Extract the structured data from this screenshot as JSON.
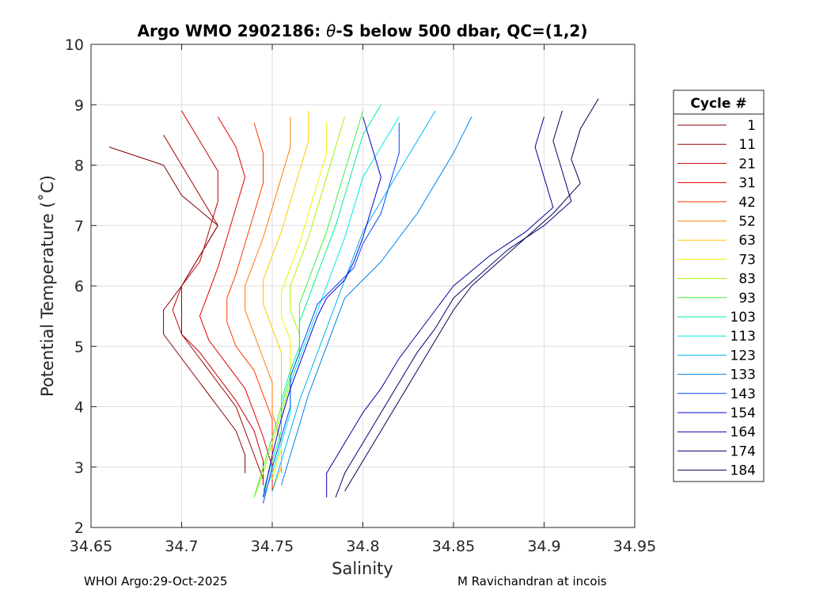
{
  "chart_data": {
    "type": "line",
    "title_prefix": "Argo WMO 2902186: ",
    "title_symbol": "θ",
    "title_suffix": "-S below 500 dbar,  QC=(1,2)",
    "xlabel": "Salinity",
    "ylabel": "Potential Temperature (˚C)",
    "xlim": [
      34.65,
      34.95
    ],
    "ylim": [
      2,
      10
    ],
    "x_ticks": [
      34.65,
      34.7,
      34.75,
      34.8,
      34.85,
      34.9,
      34.95
    ],
    "x_tick_labels": [
      "34.65",
      "34.7",
      "34.75",
      "34.8",
      "34.85",
      "34.9",
      "34.95"
    ],
    "y_ticks": [
      2,
      3,
      4,
      5,
      6,
      7,
      8,
      9,
      10
    ],
    "y_tick_labels": [
      "2",
      "3",
      "4",
      "5",
      "6",
      "7",
      "8",
      "9",
      "10"
    ],
    "grid": true,
    "legend_title": "Cycle #",
    "legend_placement": "outside-right",
    "series": [
      {
        "name": "1",
        "color": "#800000",
        "points": [
          [
            34.66,
            8.3
          ],
          [
            34.69,
            8.0
          ],
          [
            34.7,
            7.5
          ],
          [
            34.72,
            7.0
          ],
          [
            34.71,
            6.5
          ],
          [
            34.7,
            6.0
          ],
          [
            34.69,
            5.6
          ],
          [
            34.69,
            5.2
          ],
          [
            34.7,
            4.8
          ],
          [
            34.71,
            4.4
          ],
          [
            34.72,
            4.0
          ],
          [
            34.73,
            3.6
          ],
          [
            34.735,
            3.2
          ],
          [
            34.735,
            2.9
          ]
        ]
      },
      {
        "name": "11",
        "color": "#9a0000",
        "points": [
          [
            34.69,
            8.5
          ],
          [
            34.7,
            8.0
          ],
          [
            34.71,
            7.5
          ],
          [
            34.72,
            7.0
          ],
          [
            34.71,
            6.5
          ],
          [
            34.7,
            6.0
          ],
          [
            34.7,
            5.5
          ],
          [
            34.7,
            5.2
          ],
          [
            34.71,
            4.8
          ],
          [
            34.72,
            4.4
          ],
          [
            34.73,
            4.0
          ],
          [
            34.735,
            3.6
          ],
          [
            34.74,
            3.2
          ],
          [
            34.745,
            2.8
          ]
        ]
      },
      {
        "name": "21",
        "color": "#c40000",
        "points": [
          [
            34.7,
            8.9
          ],
          [
            34.71,
            8.4
          ],
          [
            34.72,
            7.9
          ],
          [
            34.72,
            7.4
          ],
          [
            34.715,
            6.9
          ],
          [
            34.71,
            6.4
          ],
          [
            34.7,
            6.0
          ],
          [
            34.695,
            5.6
          ],
          [
            34.7,
            5.2
          ],
          [
            34.71,
            4.9
          ],
          [
            34.72,
            4.5
          ],
          [
            34.73,
            4.1
          ],
          [
            34.74,
            3.6
          ],
          [
            34.745,
            3.1
          ],
          [
            34.745,
            2.7
          ]
        ]
      },
      {
        "name": "31",
        "color": "#e60000",
        "points": [
          [
            34.72,
            8.8
          ],
          [
            34.73,
            8.3
          ],
          [
            34.735,
            7.8
          ],
          [
            34.73,
            7.3
          ],
          [
            34.725,
            6.8
          ],
          [
            34.72,
            6.3
          ],
          [
            34.715,
            5.9
          ],
          [
            34.71,
            5.5
          ],
          [
            34.715,
            5.1
          ],
          [
            34.725,
            4.7
          ],
          [
            34.735,
            4.3
          ],
          [
            34.74,
            3.9
          ],
          [
            34.745,
            3.5
          ],
          [
            34.75,
            3.0
          ],
          [
            34.75,
            2.6
          ]
        ]
      },
      {
        "name": "42",
        "color": "#ff3a00",
        "points": [
          [
            34.74,
            8.7
          ],
          [
            34.745,
            8.2
          ],
          [
            34.745,
            7.7
          ],
          [
            34.74,
            7.2
          ],
          [
            34.735,
            6.7
          ],
          [
            34.73,
            6.2
          ],
          [
            34.725,
            5.8
          ],
          [
            34.725,
            5.4
          ],
          [
            34.73,
            5.0
          ],
          [
            34.74,
            4.6
          ],
          [
            34.745,
            4.2
          ],
          [
            34.75,
            3.8
          ],
          [
            34.75,
            3.3
          ],
          [
            34.75,
            2.8
          ]
        ]
      },
      {
        "name": "52",
        "color": "#ff7a00",
        "points": [
          [
            34.76,
            8.8
          ],
          [
            34.76,
            8.3
          ],
          [
            34.755,
            7.8
          ],
          [
            34.75,
            7.3
          ],
          [
            34.745,
            6.8
          ],
          [
            34.74,
            6.4
          ],
          [
            34.735,
            6.0
          ],
          [
            34.735,
            5.6
          ],
          [
            34.74,
            5.2
          ],
          [
            34.745,
            4.8
          ],
          [
            34.75,
            4.4
          ],
          [
            34.75,
            3.9
          ],
          [
            34.755,
            3.4
          ],
          [
            34.755,
            2.9
          ]
        ]
      },
      {
        "name": "63",
        "color": "#ffc800",
        "points": [
          [
            34.77,
            8.9
          ],
          [
            34.77,
            8.4
          ],
          [
            34.765,
            7.9
          ],
          [
            34.76,
            7.4
          ],
          [
            34.755,
            6.9
          ],
          [
            34.75,
            6.5
          ],
          [
            34.745,
            6.1
          ],
          [
            34.745,
            5.7
          ],
          [
            34.75,
            5.3
          ],
          [
            34.755,
            4.9
          ],
          [
            34.755,
            4.5
          ],
          [
            34.755,
            4.0
          ],
          [
            34.755,
            3.5
          ],
          [
            34.755,
            3.0
          ],
          [
            34.75,
            2.6
          ]
        ]
      },
      {
        "name": "73",
        "color": "#f2f200",
        "points": [
          [
            34.78,
            8.7
          ],
          [
            34.78,
            8.2
          ],
          [
            34.775,
            7.7
          ],
          [
            34.77,
            7.2
          ],
          [
            34.765,
            6.7
          ],
          [
            34.76,
            6.3
          ],
          [
            34.755,
            5.9
          ],
          [
            34.755,
            5.5
          ],
          [
            34.76,
            5.1
          ],
          [
            34.76,
            4.7
          ],
          [
            34.76,
            4.3
          ],
          [
            34.755,
            3.8
          ],
          [
            34.755,
            3.3
          ],
          [
            34.75,
            2.8
          ]
        ]
      },
      {
        "name": "83",
        "color": "#a8f000",
        "points": [
          [
            34.79,
            8.8
          ],
          [
            34.785,
            8.3
          ],
          [
            34.78,
            7.8
          ],
          [
            34.775,
            7.3
          ],
          [
            34.77,
            6.8
          ],
          [
            34.765,
            6.4
          ],
          [
            34.76,
            6.0
          ],
          [
            34.76,
            5.6
          ],
          [
            34.765,
            5.2
          ],
          [
            34.765,
            4.8
          ],
          [
            34.76,
            4.4
          ],
          [
            34.755,
            3.9
          ],
          [
            34.75,
            3.4
          ],
          [
            34.745,
            2.9
          ],
          [
            34.74,
            2.5
          ]
        ]
      },
      {
        "name": "93",
        "color": "#3cf03c",
        "points": [
          [
            34.8,
            8.9
          ],
          [
            34.795,
            8.4
          ],
          [
            34.79,
            7.9
          ],
          [
            34.785,
            7.4
          ],
          [
            34.78,
            6.9
          ],
          [
            34.775,
            6.5
          ],
          [
            34.77,
            6.1
          ],
          [
            34.765,
            5.7
          ],
          [
            34.765,
            5.3
          ],
          [
            34.765,
            4.9
          ],
          [
            34.76,
            4.5
          ],
          [
            34.755,
            4.0
          ],
          [
            34.75,
            3.5
          ],
          [
            34.745,
            3.0
          ],
          [
            34.74,
            2.5
          ]
        ]
      },
      {
        "name": "103",
        "color": "#00f090",
        "points": [
          [
            34.81,
            9.0
          ],
          [
            34.8,
            8.5
          ],
          [
            34.795,
            8.0
          ],
          [
            34.79,
            7.5
          ],
          [
            34.785,
            7.0
          ],
          [
            34.78,
            6.6
          ],
          [
            34.775,
            6.2
          ],
          [
            34.77,
            5.8
          ],
          [
            34.765,
            5.4
          ],
          [
            34.765,
            5.0
          ],
          [
            34.76,
            4.6
          ],
          [
            34.755,
            4.1
          ],
          [
            34.755,
            3.6
          ],
          [
            34.75,
            3.1
          ],
          [
            34.745,
            2.6
          ]
        ]
      },
      {
        "name": "113",
        "color": "#00e6e6",
        "points": [
          [
            34.82,
            8.8
          ],
          [
            34.81,
            8.3
          ],
          [
            34.8,
            7.8
          ],
          [
            34.795,
            7.3
          ],
          [
            34.79,
            6.8
          ],
          [
            34.785,
            6.4
          ],
          [
            34.78,
            6.0
          ],
          [
            34.775,
            5.6
          ],
          [
            34.77,
            5.2
          ],
          [
            34.765,
            4.8
          ],
          [
            34.76,
            4.4
          ],
          [
            34.76,
            3.9
          ],
          [
            34.755,
            3.4
          ],
          [
            34.75,
            2.9
          ],
          [
            34.745,
            2.5
          ]
        ]
      },
      {
        "name": "123",
        "color": "#00b4f0",
        "points": [
          [
            34.84,
            8.9
          ],
          [
            34.83,
            8.4
          ],
          [
            34.82,
            7.9
          ],
          [
            34.81,
            7.4
          ],
          [
            34.8,
            6.9
          ],
          [
            34.795,
            6.5
          ],
          [
            34.79,
            6.1
          ],
          [
            34.785,
            5.7
          ],
          [
            34.78,
            5.3
          ],
          [
            34.775,
            4.9
          ],
          [
            34.77,
            4.5
          ],
          [
            34.765,
            4.1
          ],
          [
            34.76,
            3.6
          ],
          [
            34.755,
            3.1
          ],
          [
            34.75,
            2.6
          ]
        ]
      },
      {
        "name": "133",
        "color": "#0082e6",
        "points": [
          [
            34.86,
            8.8
          ],
          [
            34.85,
            8.2
          ],
          [
            34.84,
            7.7
          ],
          [
            34.83,
            7.2
          ],
          [
            34.82,
            6.8
          ],
          [
            34.81,
            6.4
          ],
          [
            34.8,
            6.1
          ],
          [
            34.79,
            5.8
          ],
          [
            34.785,
            5.4
          ],
          [
            34.78,
            5.0
          ],
          [
            34.775,
            4.6
          ],
          [
            34.77,
            4.2
          ],
          [
            34.765,
            3.7
          ],
          [
            34.76,
            3.2
          ],
          [
            34.755,
            2.7
          ]
        ]
      },
      {
        "name": "143",
        "color": "#0046ff",
        "points": [
          [
            34.82,
            8.7
          ],
          [
            34.82,
            8.2
          ],
          [
            34.815,
            7.7
          ],
          [
            34.81,
            7.2
          ],
          [
            34.8,
            6.7
          ],
          [
            34.795,
            6.3
          ],
          [
            34.785,
            6.0
          ],
          [
            34.775,
            5.7
          ],
          [
            34.77,
            5.3
          ],
          [
            34.765,
            4.9
          ],
          [
            34.76,
            4.5
          ],
          [
            34.76,
            4.0
          ],
          [
            34.755,
            3.5
          ],
          [
            34.75,
            3.0
          ],
          [
            34.745,
            2.4
          ]
        ]
      },
      {
        "name": "154",
        "color": "#0000d2",
        "points": [
          [
            34.8,
            8.8
          ],
          [
            34.805,
            8.3
          ],
          [
            34.81,
            7.8
          ],
          [
            34.805,
            7.3
          ],
          [
            34.8,
            6.8
          ],
          [
            34.795,
            6.4
          ],
          [
            34.79,
            6.1
          ],
          [
            34.78,
            5.8
          ],
          [
            34.775,
            5.5
          ],
          [
            34.77,
            5.1
          ],
          [
            34.765,
            4.7
          ],
          [
            34.76,
            4.3
          ],
          [
            34.755,
            3.8
          ],
          [
            34.75,
            3.2
          ],
          [
            34.745,
            2.5
          ]
        ]
      },
      {
        "name": "164",
        "color": "#00009a",
        "points": [
          [
            34.9,
            8.8
          ],
          [
            34.895,
            8.3
          ],
          [
            34.9,
            7.8
          ],
          [
            34.905,
            7.3
          ],
          [
            34.89,
            6.9
          ],
          [
            34.87,
            6.5
          ],
          [
            34.85,
            6.0
          ],
          [
            34.84,
            5.6
          ],
          [
            34.83,
            5.2
          ],
          [
            34.82,
            4.8
          ],
          [
            34.81,
            4.3
          ],
          [
            34.8,
            3.9
          ],
          [
            34.79,
            3.4
          ],
          [
            34.78,
            2.9
          ],
          [
            34.78,
            2.5
          ]
        ]
      },
      {
        "name": "174",
        "color": "#000070",
        "points": [
          [
            34.91,
            8.9
          ],
          [
            34.905,
            8.4
          ],
          [
            34.91,
            7.9
          ],
          [
            34.915,
            7.4
          ],
          [
            34.9,
            7.0
          ],
          [
            34.88,
            6.6
          ],
          [
            34.865,
            6.2
          ],
          [
            34.85,
            5.8
          ],
          [
            34.84,
            5.3
          ],
          [
            34.83,
            4.9
          ],
          [
            34.82,
            4.4
          ],
          [
            34.81,
            3.9
          ],
          [
            34.8,
            3.4
          ],
          [
            34.79,
            2.9
          ],
          [
            34.785,
            2.5
          ]
        ]
      },
      {
        "name": "184",
        "color": "#000050",
        "points": [
          [
            34.93,
            9.1
          ],
          [
            34.92,
            8.6
          ],
          [
            34.915,
            8.1
          ],
          [
            34.92,
            7.7
          ],
          [
            34.905,
            7.2
          ],
          [
            34.89,
            6.8
          ],
          [
            34.875,
            6.4
          ],
          [
            34.86,
            6.0
          ],
          [
            34.85,
            5.6
          ],
          [
            34.84,
            5.1
          ],
          [
            34.83,
            4.6
          ],
          [
            34.82,
            4.1
          ],
          [
            34.81,
            3.6
          ],
          [
            34.8,
            3.1
          ],
          [
            34.79,
            2.6
          ]
        ]
      }
    ]
  },
  "footer": {
    "left": "WHOI Argo:29-Oct-2025",
    "right": "M Ravichandran at incois"
  }
}
